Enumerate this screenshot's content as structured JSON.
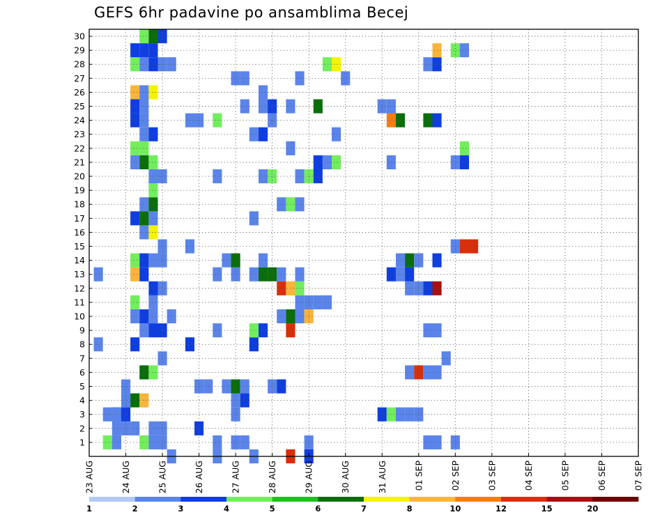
{
  "chart_data": {
    "type": "heatmap",
    "title": "GEFS 6hr padavine po ansamblima Becej",
    "xlabel": "",
    "ylabel": "",
    "y_tick_labels": [
      "1",
      "2",
      "3",
      "4",
      "5",
      "6",
      "7",
      "8",
      "9",
      "10",
      "11",
      "12",
      "13",
      "14",
      "15",
      "16",
      "17",
      "18",
      "19",
      "20",
      "21",
      "22",
      "23",
      "24",
      "25",
      "26",
      "27",
      "28",
      "29",
      "30"
    ],
    "x_tick_labels": [
      "23 AUG",
      "24 AUG",
      "25 AUG",
      "26 AUG",
      "27 AUG",
      "28 AUG",
      "29 AUG",
      "30 AUG",
      "31 AUG",
      "01 SEP",
      "02 SEP",
      "03 SEP",
      "04 SEP",
      "05 SEP",
      "06 SEP",
      "07 SEP"
    ],
    "grid": true,
    "x_step_unit": "6 h",
    "legend": {
      "placement": "bottom",
      "labels": [
        "1",
        "2",
        "3",
        "4",
        "5",
        "6",
        "7",
        "8",
        "10",
        "12",
        "15",
        "20"
      ],
      "colors": [
        "#b4c8f5",
        "#5a84ea",
        "#0f3ee0",
        "#72ee5c",
        "#1ec21e",
        "#0a6e0a",
        "#f4f400",
        "#fbb43a",
        "#f57d10",
        "#d92e0a",
        "#a80f0f",
        "#6e0202"
      ]
    },
    "cells": [
      [
        2,
        1,
        3
      ],
      [
        3,
        1,
        1
      ],
      [
        3,
        2,
        1
      ],
      [
        3,
        3,
        2
      ],
      [
        4,
        4,
        1
      ],
      [
        4,
        5,
        1
      ],
      [
        24,
        1,
        1
      ],
      [
        14,
        1,
        1
      ],
      [
        16,
        1,
        1
      ],
      [
        37,
        1,
        1
      ],
      [
        40,
        1,
        1
      ],
      [
        38,
        1,
        1
      ],
      [
        4,
        2,
        1
      ],
      [
        5,
        2,
        1
      ],
      [
        12,
        2,
        2
      ],
      [
        2,
        3,
        1
      ],
      [
        3,
        3,
        1
      ],
      [
        4,
        3,
        2
      ],
      [
        16,
        3,
        1
      ],
      [
        32,
        3,
        2
      ],
      [
        33,
        3,
        3
      ],
      [
        34,
        3,
        1
      ],
      [
        35,
        3,
        1
      ],
      [
        36,
        3,
        1
      ],
      [
        5,
        4,
        5
      ],
      [
        6,
        4,
        7
      ],
      [
        16,
        4,
        1
      ],
      [
        17,
        4,
        2
      ],
      [
        15,
        5,
        1
      ],
      [
        16,
        5,
        5
      ],
      [
        17,
        5,
        1
      ],
      [
        20,
        5,
        1
      ],
      [
        21,
        5,
        2
      ],
      [
        12,
        5,
        1
      ],
      [
        13,
        5,
        1
      ],
      [
        6,
        6,
        5
      ],
      [
        7,
        6,
        3
      ],
      [
        35,
        6,
        1
      ],
      [
        36,
        6,
        9
      ],
      [
        37,
        6,
        1
      ],
      [
        38,
        6,
        1
      ],
      [
        8,
        7,
        1
      ],
      [
        39,
        7,
        1
      ],
      [
        1,
        8,
        1
      ],
      [
        5,
        8,
        2
      ],
      [
        11,
        8,
        2
      ],
      [
        18,
        8,
        2
      ],
      [
        6,
        9,
        1
      ],
      [
        7,
        9,
        2
      ],
      [
        8,
        9,
        2
      ],
      [
        14,
        9,
        1
      ],
      [
        18,
        9,
        3
      ],
      [
        19,
        9,
        2
      ],
      [
        22,
        9,
        9
      ],
      [
        37,
        9,
        1
      ],
      [
        38,
        9,
        1
      ],
      [
        5,
        10,
        1
      ],
      [
        6,
        10,
        2
      ],
      [
        7,
        10,
        1
      ],
      [
        9,
        10,
        1
      ],
      [
        21,
        10,
        1
      ],
      [
        22,
        10,
        5
      ],
      [
        23,
        10,
        1
      ],
      [
        24,
        10,
        7
      ],
      [
        5,
        11,
        3
      ],
      [
        7,
        11,
        1
      ],
      [
        23,
        11,
        1
      ],
      [
        24,
        11,
        1
      ],
      [
        25,
        11,
        1
      ],
      [
        26,
        11,
        1
      ],
      [
        7,
        12,
        2
      ],
      [
        8,
        12,
        1
      ],
      [
        21,
        12,
        9
      ],
      [
        22,
        12,
        7
      ],
      [
        23,
        12,
        3
      ],
      [
        35,
        12,
        1
      ],
      [
        36,
        12,
        1
      ],
      [
        37,
        12,
        2
      ],
      [
        38,
        12,
        10
      ],
      [
        1,
        13,
        1
      ],
      [
        5,
        13,
        7
      ],
      [
        6,
        13,
        2
      ],
      [
        14,
        13,
        1
      ],
      [
        16,
        13,
        1
      ],
      [
        18,
        13,
        1
      ],
      [
        19,
        13,
        5
      ],
      [
        20,
        13,
        5
      ],
      [
        21,
        13,
        1
      ],
      [
        23,
        13,
        1
      ],
      [
        33,
        13,
        2
      ],
      [
        34,
        13,
        1
      ],
      [
        35,
        13,
        2
      ],
      [
        5,
        14,
        3
      ],
      [
        6,
        14,
        2
      ],
      [
        7,
        14,
        1
      ],
      [
        8,
        14,
        1
      ],
      [
        15,
        14,
        1
      ],
      [
        16,
        14,
        5
      ],
      [
        19,
        14,
        1
      ],
      [
        34,
        14,
        1
      ],
      [
        35,
        14,
        5
      ],
      [
        36,
        14,
        1
      ],
      [
        38,
        14,
        2
      ],
      [
        8,
        15,
        1
      ],
      [
        11,
        15,
        1
      ],
      [
        40,
        15,
        1
      ],
      [
        41,
        15,
        9
      ],
      [
        42,
        15,
        9
      ],
      [
        6,
        16,
        1
      ],
      [
        7,
        16,
        6
      ],
      [
        5,
        17,
        2
      ],
      [
        6,
        17,
        5
      ],
      [
        7,
        17,
        1
      ],
      [
        18,
        17,
        1
      ],
      [
        6,
        18,
        1
      ],
      [
        7,
        18,
        5
      ],
      [
        21,
        18,
        1
      ],
      [
        22,
        18,
        3
      ],
      [
        23,
        18,
        1
      ],
      [
        7,
        19,
        3
      ],
      [
        7,
        20,
        1
      ],
      [
        8,
        20,
        1
      ],
      [
        14,
        20,
        1
      ],
      [
        19,
        20,
        1
      ],
      [
        20,
        20,
        3
      ],
      [
        23,
        20,
        1
      ],
      [
        24,
        20,
        3
      ],
      [
        25,
        20,
        2
      ],
      [
        5,
        21,
        1
      ],
      [
        6,
        21,
        5
      ],
      [
        7,
        21,
        3
      ],
      [
        25,
        21,
        2
      ],
      [
        26,
        21,
        1
      ],
      [
        27,
        21,
        3
      ],
      [
        33,
        21,
        1
      ],
      [
        40,
        21,
        1
      ],
      [
        41,
        21,
        2
      ],
      [
        5,
        22,
        3
      ],
      [
        6,
        22,
        3
      ],
      [
        22,
        22,
        1
      ],
      [
        41,
        22,
        3
      ],
      [
        6,
        23,
        1
      ],
      [
        7,
        23,
        2
      ],
      [
        18,
        23,
        1
      ],
      [
        19,
        23,
        2
      ],
      [
        27,
        23,
        1
      ],
      [
        5,
        24,
        2
      ],
      [
        6,
        24,
        1
      ],
      [
        11,
        24,
        1
      ],
      [
        12,
        24,
        1
      ],
      [
        14,
        24,
        3
      ],
      [
        20,
        24,
        1
      ],
      [
        33,
        24,
        8
      ],
      [
        34,
        24,
        5
      ],
      [
        37,
        24,
        5
      ],
      [
        38,
        24,
        2
      ],
      [
        5,
        25,
        2
      ],
      [
        6,
        25,
        1
      ],
      [
        17,
        25,
        1
      ],
      [
        19,
        25,
        1
      ],
      [
        20,
        25,
        2
      ],
      [
        22,
        25,
        1
      ],
      [
        25,
        25,
        5
      ],
      [
        32,
        25,
        1
      ],
      [
        33,
        25,
        1
      ],
      [
        5,
        26,
        7
      ],
      [
        6,
        26,
        1
      ],
      [
        7,
        26,
        6
      ],
      [
        19,
        26,
        1
      ],
      [
        16,
        27,
        1
      ],
      [
        17,
        27,
        1
      ],
      [
        23,
        27,
        1
      ],
      [
        28,
        27,
        1
      ],
      [
        5,
        28,
        3
      ],
      [
        6,
        28,
        1
      ],
      [
        7,
        28,
        2
      ],
      [
        8,
        28,
        1
      ],
      [
        9,
        28,
        1
      ],
      [
        26,
        28,
        3
      ],
      [
        27,
        28,
        6
      ],
      [
        37,
        28,
        1
      ],
      [
        38,
        28,
        2
      ],
      [
        5,
        29,
        2
      ],
      [
        6,
        29,
        2
      ],
      [
        7,
        29,
        2
      ],
      [
        38,
        29,
        7
      ],
      [
        40,
        29,
        3
      ],
      [
        41,
        29,
        1
      ],
      [
        6,
        30,
        3
      ],
      [
        7,
        30,
        5
      ],
      [
        8,
        30,
        2
      ],
      [
        6,
        1,
        3
      ],
      [
        7,
        1,
        1
      ],
      [
        8,
        1,
        1
      ],
      [
        17,
        1,
        1
      ],
      [
        7,
        2,
        1
      ],
      [
        8,
        2,
        1
      ],
      [
        9,
        0,
        1
      ],
      [
        14,
        0,
        1
      ],
      [
        18,
        0,
        1
      ],
      [
        22,
        0,
        9
      ],
      [
        24,
        0,
        2
      ]
    ]
  }
}
